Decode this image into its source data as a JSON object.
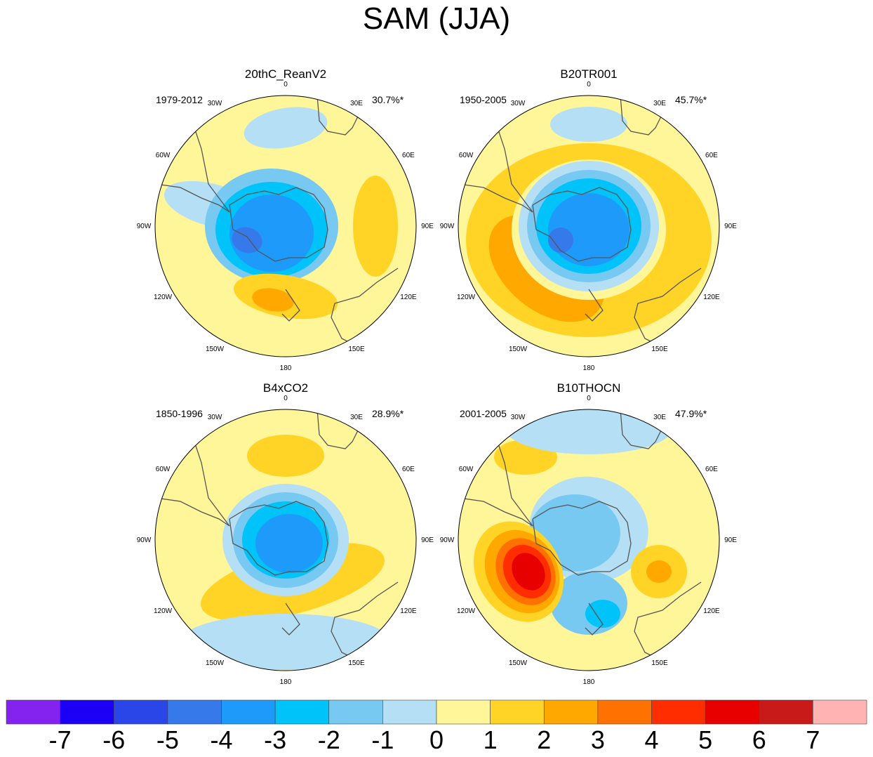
{
  "title": "SAM (JJA)",
  "chart_data": {
    "type": "heatmap",
    "projection": "south-polar-stereographic",
    "panels": [
      {
        "name": "20thC_ReanV2",
        "period": "1979-2012",
        "variance_explained": "30.7%*"
      },
      {
        "name": "B20TR001",
        "period": "1950-2005",
        "variance_explained": "45.7%*"
      },
      {
        "name": "B4xCO2",
        "period": "1850-1996",
        "variance_explained": "28.9%*"
      },
      {
        "name": "B10THOCN",
        "period": "2001-2005",
        "variance_explained": "47.9%*"
      }
    ],
    "longitude_labels": [
      "0",
      "30E",
      "60E",
      "90E",
      "120E",
      "150E",
      "180",
      "150W",
      "120W",
      "90W",
      "60W",
      "30W"
    ],
    "colorbar": {
      "labels": [
        "-7",
        "-6",
        "-5",
        "-4",
        "-3",
        "-2",
        "-1",
        "0",
        "1",
        "2",
        "3",
        "4",
        "5",
        "6",
        "7"
      ],
      "colors": [
        "#8423f0",
        "#1b00f5",
        "#2b46e8",
        "#3679ea",
        "#1e9bfa",
        "#00c3fa",
        "#77c9f2",
        "#b5dff4",
        "#fff69a",
        "#ffd426",
        "#ffa800",
        "#ff7100",
        "#ff2d00",
        "#e60000",
        "#c91a1a",
        "#ffb4b4"
      ]
    }
  }
}
